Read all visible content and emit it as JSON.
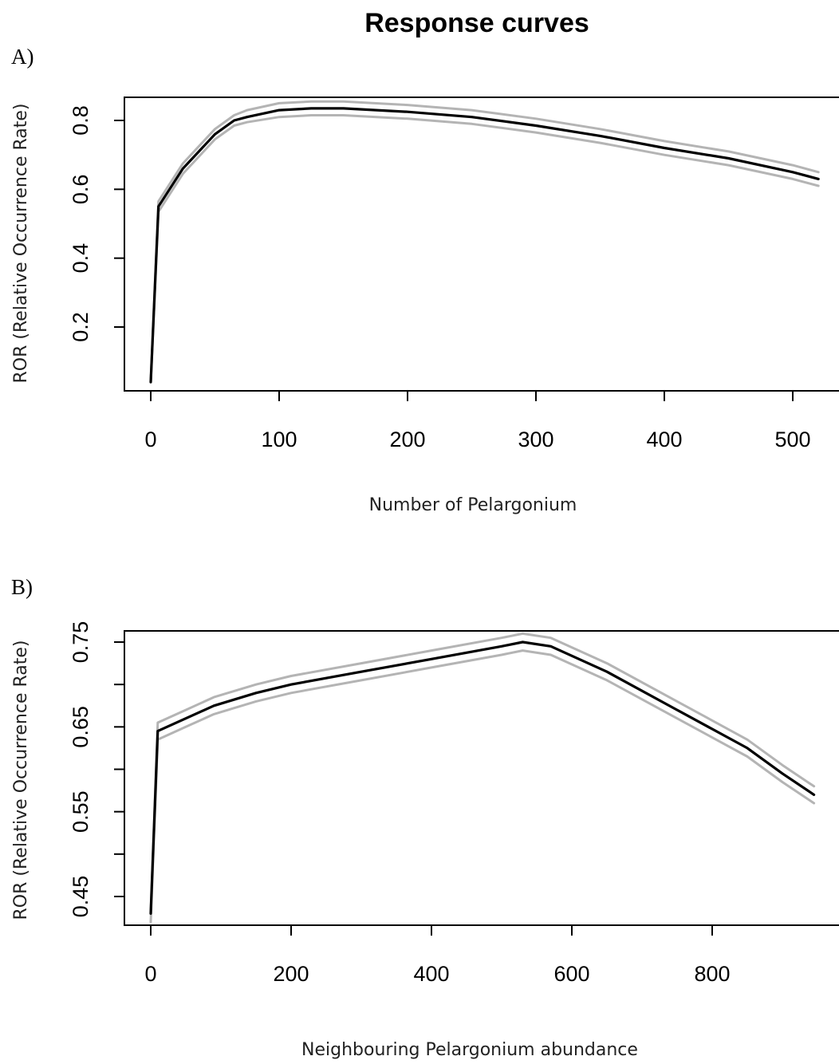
{
  "chart_data": [
    {
      "type": "line",
      "panel_label": "A)",
      "title": "Response curves",
      "xlabel": "Number of Pelargonium",
      "ylabel": "ROR (Relative Occurrence Rate)",
      "xlim": [
        0,
        535
      ],
      "ylim": [
        0.04,
        0.87
      ],
      "xticks": [
        "0",
        "100",
        "200",
        "300",
        "400",
        "500"
      ],
      "yticks": [
        "0.2",
        "0.4",
        "0.6",
        "0.8"
      ],
      "grid": false,
      "colors": {
        "mean": "#000000",
        "band": "#b4b4b4"
      },
      "series": [
        {
          "role": "mean",
          "x": [
            0,
            6,
            25,
            50,
            65,
            75,
            100,
            125,
            150,
            200,
            250,
            300,
            350,
            400,
            450,
            500,
            520
          ],
          "y": [
            0.04,
            0.55,
            0.66,
            0.76,
            0.8,
            0.81,
            0.83,
            0.835,
            0.835,
            0.825,
            0.81,
            0.785,
            0.755,
            0.72,
            0.69,
            0.65,
            0.63
          ]
        },
        {
          "role": "upper",
          "x": [
            0,
            6,
            25,
            50,
            65,
            75,
            100,
            125,
            150,
            200,
            250,
            300,
            350,
            400,
            450,
            500,
            520
          ],
          "y": [
            0.04,
            0.565,
            0.675,
            0.775,
            0.815,
            0.83,
            0.85,
            0.855,
            0.855,
            0.845,
            0.83,
            0.805,
            0.775,
            0.74,
            0.71,
            0.67,
            0.65
          ]
        },
        {
          "role": "lower",
          "x": [
            0,
            6,
            25,
            50,
            65,
            75,
            100,
            125,
            150,
            200,
            250,
            300,
            350,
            400,
            450,
            500,
            520
          ],
          "y": [
            0.04,
            0.535,
            0.645,
            0.745,
            0.785,
            0.795,
            0.81,
            0.815,
            0.815,
            0.805,
            0.79,
            0.765,
            0.735,
            0.7,
            0.67,
            0.63,
            0.61
          ]
        }
      ]
    },
    {
      "type": "line",
      "panel_label": "B)",
      "xlabel": "Neighbouring Pelargonium abundance",
      "ylabel": "ROR (Relative Occurrence Rate)",
      "xlim": [
        0,
        980
      ],
      "ylim": [
        0.42,
        0.78
      ],
      "xticks": [
        "0",
        "200",
        "400",
        "600",
        "800"
      ],
      "yticks": [
        "0.45",
        "0.55",
        "0.65",
        "0.75"
      ],
      "grid": false,
      "colors": {
        "mean": "#000000",
        "band": "#b4b4b4"
      },
      "series": [
        {
          "role": "mean",
          "x": [
            0,
            10,
            50,
            90,
            150,
            200,
            300,
            400,
            500,
            530,
            570,
            650,
            750,
            850,
            900,
            945
          ],
          "y": [
            0.43,
            0.645,
            0.66,
            0.675,
            0.69,
            0.7,
            0.715,
            0.73,
            0.745,
            0.75,
            0.745,
            0.715,
            0.67,
            0.625,
            0.595,
            0.57
          ]
        },
        {
          "role": "upper",
          "x": [
            0,
            10,
            50,
            90,
            150,
            200,
            300,
            400,
            500,
            530,
            570,
            650,
            750,
            850,
            900,
            945
          ],
          "y": [
            0.43,
            0.655,
            0.67,
            0.685,
            0.7,
            0.71,
            0.725,
            0.74,
            0.755,
            0.76,
            0.755,
            0.725,
            0.68,
            0.635,
            0.605,
            0.58
          ]
        },
        {
          "role": "lower",
          "x": [
            0,
            10,
            50,
            90,
            150,
            200,
            300,
            400,
            500,
            530,
            570,
            650,
            750,
            850,
            900,
            945
          ],
          "y": [
            0.42,
            0.635,
            0.65,
            0.665,
            0.68,
            0.69,
            0.705,
            0.72,
            0.735,
            0.74,
            0.735,
            0.705,
            0.66,
            0.615,
            0.585,
            0.56
          ]
        }
      ]
    }
  ]
}
